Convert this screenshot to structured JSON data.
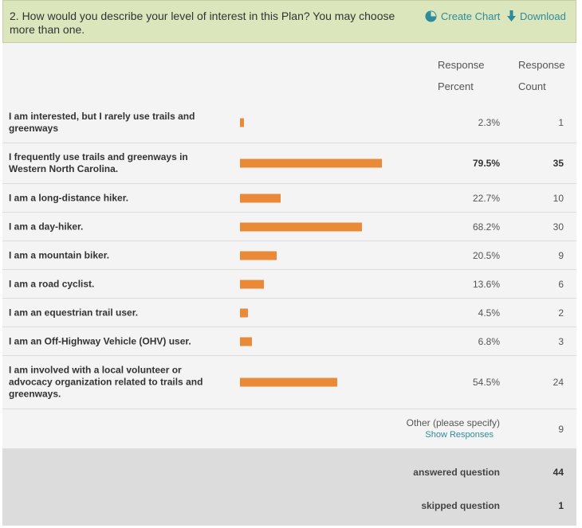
{
  "header": {
    "question": "2. How would you describe your level of interest in this Plan? You may choose more than one.",
    "create_chart_label": "Create Chart",
    "download_label": "Download",
    "accent_color": "#2e8b9a",
    "background_color": "#dbe6bd"
  },
  "columns": {
    "percent_line1": "Response",
    "percent_line2": "Percent",
    "count_line1": "Response",
    "count_line2": "Count"
  },
  "bar_color": "#ea8a38",
  "rows": [
    {
      "label": "I am interested, but I rarely use trails and greenways",
      "percent": "2.3%",
      "value": 2.3,
      "count": "1",
      "bold": false
    },
    {
      "label": "I frequently use trails and greenways in Western North Carolina.",
      "percent": "79.5%",
      "value": 79.5,
      "count": "35",
      "bold": true
    },
    {
      "label": "I am a long-distance hiker.",
      "percent": "22.7%",
      "value": 22.7,
      "count": "10",
      "bold": false
    },
    {
      "label": "I am a day-hiker.",
      "percent": "68.2%",
      "value": 68.2,
      "count": "30",
      "bold": false
    },
    {
      "label": "I am a mountain biker.",
      "percent": "20.5%",
      "value": 20.5,
      "count": "9",
      "bold": false
    },
    {
      "label": "I am a road cyclist.",
      "percent": "13.6%",
      "value": 13.6,
      "count": "6",
      "bold": false
    },
    {
      "label": "I am an equestrian trail user.",
      "percent": "4.5%",
      "value": 4.5,
      "count": "2",
      "bold": false
    },
    {
      "label": "I am an Off-Highway Vehicle (OHV) user.",
      "percent": "6.8%",
      "value": 6.8,
      "count": "3",
      "bold": false
    },
    {
      "label": "I am involved with a local volunteer or advocacy organization related to trails and greenways.",
      "percent": "54.5%",
      "value": 54.5,
      "count": "24",
      "bold": false
    }
  ],
  "other": {
    "label": "Other (please specify)",
    "show_responses_label": "Show Responses",
    "count": "9"
  },
  "summary": {
    "answered_label": "answered question",
    "answered_count": "44",
    "skipped_label": "skipped question",
    "skipped_count": "1"
  }
}
